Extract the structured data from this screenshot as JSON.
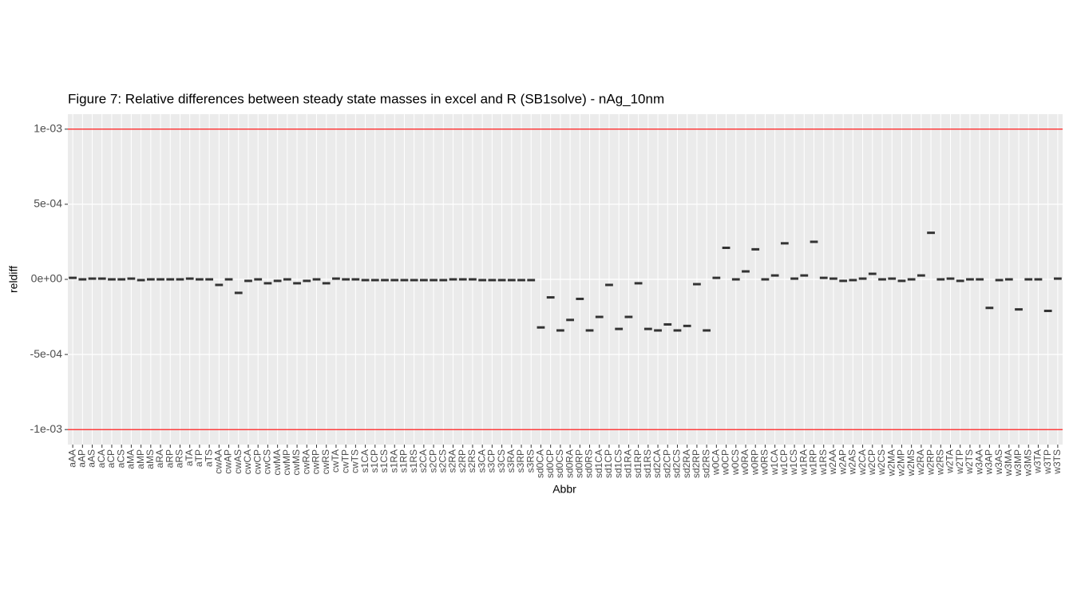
{
  "chart_data": {
    "type": "boxplot",
    "title": "Figure 7: Relative differences between steady state masses in excel and R (SB1solve) - nAg_10nm",
    "x_label": "Abbr",
    "y_label": "reldiff",
    "categories": [
      "aAA",
      "aAP",
      "aAS",
      "aCA",
      "aCP",
      "aCS",
      "aMA",
      "aMP",
      "aMS",
      "aRA",
      "aRP",
      "aRS",
      "aTA",
      "aTP",
      "aTS",
      "cwAA",
      "cwAP",
      "cwAS",
      "cwCA",
      "cwCP",
      "cwCS",
      "cwMA",
      "cwMP",
      "cwMS",
      "cwRA",
      "cwRP",
      "cwRS",
      "cwTA",
      "cwTP",
      "cwTS",
      "s1CA",
      "s1CP",
      "s1CS",
      "s1RA",
      "s1RP",
      "s1RS",
      "s2CA",
      "s2CP",
      "s2CS",
      "s2RA",
      "s2RP",
      "s2RS",
      "s3CA",
      "s3CP",
      "s3CS",
      "s3RA",
      "s3RP",
      "s3RS",
      "sd0CA",
      "sd0CP",
      "sd0CS",
      "sd0RA",
      "sd0RP",
      "sd0RS",
      "sd1CA",
      "sd1CP",
      "sd1CS",
      "sd1RA",
      "sd1RP",
      "sd1RS",
      "sd2CA",
      "sd2CP",
      "sd2CS",
      "sd2RA",
      "sd2RP",
      "sd2RS",
      "w0CA",
      "w0CP",
      "w0CS",
      "w0RA",
      "w0RP",
      "w0RS",
      "w1CA",
      "w1CP",
      "w1CS",
      "w1RA",
      "w1RP",
      "w1RS",
      "w2AA",
      "w2AP",
      "w2AS",
      "w2CA",
      "w2CP",
      "w2CS",
      "w2MA",
      "w2MP",
      "w2MS",
      "w2RA",
      "w2RP",
      "w2RS",
      "w2TA",
      "w2TP",
      "w2TS",
      "w3AA",
      "w3AP",
      "w3AS",
      "w3MA",
      "w3MP",
      "w3MS",
      "w3TA",
      "w3TP",
      "w3TS"
    ],
    "values": [
      1e-05,
      0,
      5e-06,
      5e-06,
      0,
      0,
      5e-06,
      -5e-06,
      0,
      0,
      0,
      0,
      5e-06,
      0,
      0,
      -3.7e-05,
      0,
      -9e-05,
      -1e-05,
      0,
      -2.6e-05,
      -1e-05,
      0,
      -2.6e-05,
      -1e-05,
      0,
      -2.6e-05,
      5e-06,
      0,
      0,
      -5e-06,
      -5e-06,
      -5e-06,
      -5e-06,
      -5e-06,
      -5e-06,
      -5e-06,
      -5e-06,
      -5e-06,
      0,
      0,
      0,
      -5e-06,
      -5e-06,
      -5e-06,
      -5e-06,
      -5e-06,
      -5e-06,
      -0.00032,
      -0.00012,
      -0.00034,
      -0.00027,
      -0.00013,
      -0.00034,
      -0.00025,
      -3.7e-05,
      -0.00033,
      -0.00025,
      -2.6e-05,
      -0.00033,
      -0.00034,
      -0.0003,
      -0.00034,
      -0.00031,
      -3.2e-05,
      -0.00034,
      1e-05,
      0.00021,
      0,
      5.3e-05,
      0.0002,
      0,
      2.6e-05,
      0.00024,
      5e-06,
      2.6e-05,
      0.00025,
      1e-05,
      5e-06,
      -1e-05,
      -5e-06,
      5e-06,
      3.7e-05,
      0,
      5e-06,
      -1e-05,
      0,
      2.6e-05,
      0.00031,
      0,
      5e-06,
      -1e-05,
      0,
      0,
      -0.00019,
      -5e-06,
      0,
      -0.0002,
      0,
      0,
      -0.00021,
      5e-06
    ],
    "color": "#333333",
    "ylim": [
      -0.0011,
      0.0011
    ],
    "yticks": [
      {
        "value": -0.001,
        "label": "-1e-03"
      },
      {
        "value": -0.0005,
        "label": "-5e-04"
      },
      {
        "value": 0,
        "label": "0e+00"
      },
      {
        "value": 0.0005,
        "label": "5e-04"
      },
      {
        "value": 0.001,
        "label": "1e-03"
      }
    ],
    "hlines": [
      0.001,
      -0.001
    ],
    "hline_color": "#ff0000",
    "grid": true
  }
}
